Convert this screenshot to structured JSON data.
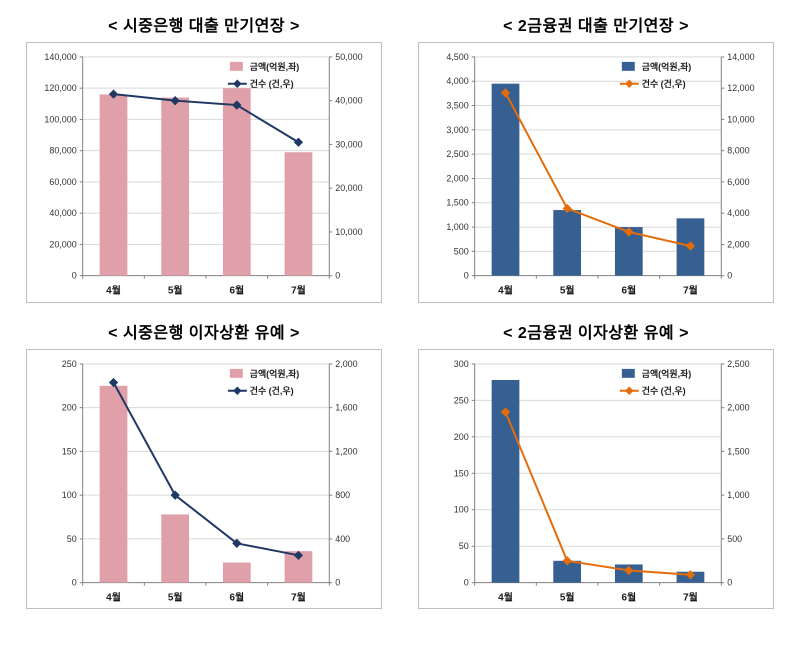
{
  "page": {
    "background": "#ffffff"
  },
  "chart_data": [
    {
      "type": "bar",
      "subtype": "bar+line-combo",
      "title": "< 시중은행 대출 만기연장 >",
      "categories": [
        "4월",
        "5월",
        "6월",
        "7월"
      ],
      "bar": {
        "name": "금액(억원,좌)",
        "color": "#dfa0a9",
        "axis": "left",
        "values": [
          116000,
          114000,
          120000,
          79000
        ]
      },
      "line": {
        "name": "건수 (건,우)",
        "color": "#1f3864",
        "axis": "right",
        "values": [
          41500,
          40000,
          39000,
          30500
        ]
      },
      "left_axis": {
        "min": 0,
        "max": 140000,
        "step": 20000
      },
      "right_axis": {
        "min": 0,
        "max": 50000,
        "step": 10000
      },
      "grid": true,
      "legend_position": "top-right"
    },
    {
      "type": "bar",
      "subtype": "bar+line-combo",
      "title": "< 2금융권 대출 만기연장 >",
      "categories": [
        "4월",
        "5월",
        "6월",
        "7월"
      ],
      "bar": {
        "name": "금액(억원,좌)",
        "color": "#376092",
        "axis": "left",
        "values": [
          3950,
          1350,
          1000,
          1180
        ]
      },
      "line": {
        "name": "건수 (건,우)",
        "color": "#e46c0a",
        "axis": "right",
        "values": [
          11700,
          4300,
          2800,
          1900
        ]
      },
      "left_axis": {
        "min": 0,
        "max": 4500,
        "step": 500
      },
      "right_axis": {
        "min": 0,
        "max": 14000,
        "step": 2000
      },
      "grid": true,
      "legend_position": "top-right"
    },
    {
      "type": "bar",
      "subtype": "bar+line-combo",
      "title": "< 시중은행 이자상환 유예 >",
      "categories": [
        "4월",
        "5월",
        "6월",
        "7월"
      ],
      "bar": {
        "name": "금액(억원,좌)",
        "color": "#dfa0a9",
        "axis": "left",
        "values": [
          225,
          78,
          23,
          36
        ]
      },
      "line": {
        "name": "건수 (건,우)",
        "color": "#1f3864",
        "axis": "right",
        "values": [
          1830,
          800,
          360,
          250
        ]
      },
      "left_axis": {
        "min": 0,
        "max": 250,
        "step": 50
      },
      "right_axis": {
        "min": 0,
        "max": 2000,
        "step": 400
      },
      "grid": true,
      "legend_position": "top-right"
    },
    {
      "type": "bar",
      "subtype": "bar+line-combo",
      "title": "< 2금융권 이자상환 유예 >",
      "categories": [
        "4월",
        "5월",
        "6월",
        "7월"
      ],
      "bar": {
        "name": "금액(억원,좌)",
        "color": "#376092",
        "axis": "left",
        "values": [
          278,
          30,
          25,
          15
        ]
      },
      "line": {
        "name": "건수 (건,우)",
        "color": "#e46c0a",
        "axis": "right",
        "values": [
          1950,
          250,
          140,
          90
        ]
      },
      "left_axis": {
        "min": 0,
        "max": 300,
        "step": 50
      },
      "right_axis": {
        "min": 0,
        "max": 2500,
        "step": 500
      },
      "grid": true,
      "legend_position": "top-right"
    }
  ],
  "style": {
    "gridline_color": "#d9d9d9",
    "axis_color": "#808080",
    "tick_label_color": "#333333",
    "category_label_color": "#1a1a1a"
  }
}
